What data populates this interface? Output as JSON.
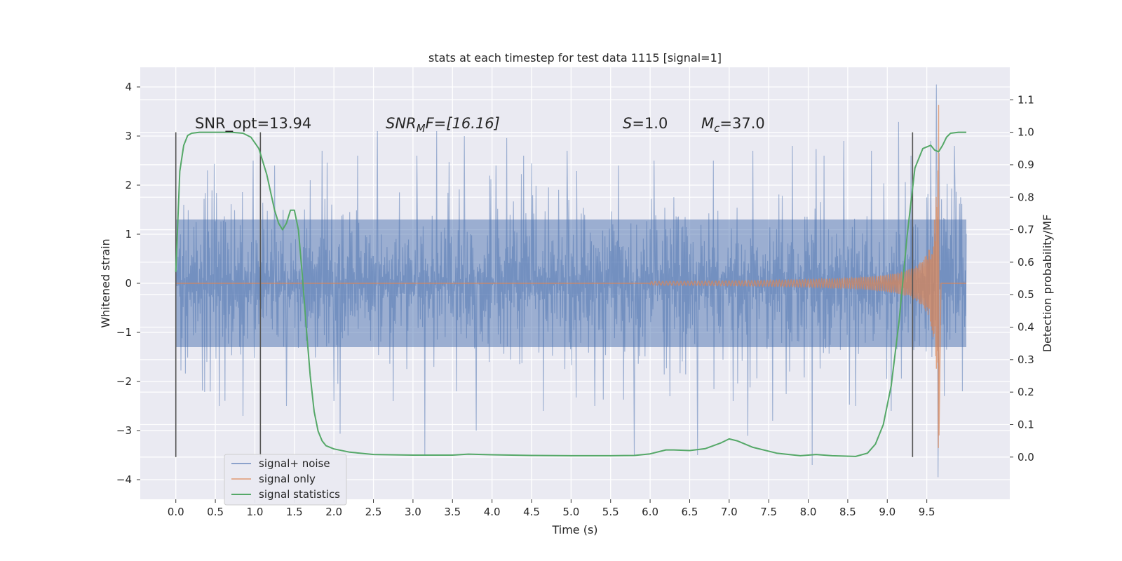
{
  "chart_data": {
    "type": "line",
    "title": "stats at each timestep for test data 1115 [signal=1]",
    "xlabel": "Time (s)",
    "ylabel": "Whitened strain",
    "y2label": "Detection probability/MF",
    "xlim": [
      -0.45,
      10.55
    ],
    "ylim": [
      -4.4,
      4.4
    ],
    "y2lim": [
      -0.13,
      1.2
    ],
    "x_ticks": [
      "0.0",
      "0.5",
      "1.0",
      "1.5",
      "2.0",
      "2.5",
      "3.0",
      "3.5",
      "4.0",
      "4.5",
      "5.0",
      "5.5",
      "6.0",
      "6.5",
      "7.0",
      "7.5",
      "8.0",
      "8.5",
      "9.0",
      "9.5"
    ],
    "y_ticks": [
      "4",
      "3",
      "2",
      "1",
      "0",
      "−1",
      "−2",
      "−3",
      "−4"
    ],
    "y2_ticks": [
      "1.1",
      "1.0",
      "0.9",
      "0.8",
      "0.7",
      "0.6",
      "0.5",
      "0.4",
      "0.3",
      "0.2",
      "0.1",
      "0.0"
    ],
    "grid": true,
    "legend_placement": "lower-left",
    "annotations": {
      "snr_opt": "SNR_opt=13.94",
      "snr_mf_italic": "SNR",
      "snr_mf_sub": "M",
      "snr_mf_rest": "F=[16.16]",
      "s_italic": "S",
      "s_rest": "=1.0",
      "mc_italic": "M",
      "mc_sub": "c",
      "mc_rest": "=37.0"
    },
    "vlines_x": [
      0.0,
      1.07,
      9.32
    ],
    "vlines_y2_range": [
      0.0,
      1.0
    ],
    "series": [
      {
        "name": "signal+ noise",
        "color": "#4c72b0",
        "x_range": [
          0.0,
          10.0
        ],
        "typical_envelope": [
          -1.3,
          1.3
        ],
        "peaks": [
          {
            "x": 0.1,
            "y": 1.6
          },
          {
            "x": 0.4,
            "y": 2.3
          },
          {
            "x": 0.55,
            "y": -2.5
          },
          {
            "x": 0.85,
            "y": -2.7
          },
          {
            "x": 0.98,
            "y": 2.5
          },
          {
            "x": 1.25,
            "y": 2.4
          },
          {
            "x": 1.4,
            "y": -2.5
          },
          {
            "x": 1.7,
            "y": 2.1
          },
          {
            "x": 1.85,
            "y": 2.7
          },
          {
            "x": 2.0,
            "y": -2.4
          },
          {
            "x": 2.3,
            "y": 2.6
          },
          {
            "x": 2.55,
            "y": 3.1
          },
          {
            "x": 2.75,
            "y": -2.4
          },
          {
            "x": 3.05,
            "y": 2.6
          },
          {
            "x": 3.15,
            "y": -3.5
          },
          {
            "x": 3.3,
            "y": 3.1
          },
          {
            "x": 3.55,
            "y": -2.2
          },
          {
            "x": 3.65,
            "y": 3.0
          },
          {
            "x": 3.8,
            "y": -3.0
          },
          {
            "x": 4.05,
            "y": 2.4
          },
          {
            "x": 4.4,
            "y": 2.6
          },
          {
            "x": 4.65,
            "y": -2.6
          },
          {
            "x": 4.95,
            "y": 2.7
          },
          {
            "x": 5.3,
            "y": -2.5
          },
          {
            "x": 5.6,
            "y": 2.4
          },
          {
            "x": 5.8,
            "y": -3.5
          },
          {
            "x": 6.05,
            "y": 2.5
          },
          {
            "x": 6.25,
            "y": -2.3
          },
          {
            "x": 6.6,
            "y": -3.5
          },
          {
            "x": 6.8,
            "y": 2.5
          },
          {
            "x": 7.05,
            "y": -2.4
          },
          {
            "x": 7.3,
            "y": 2.7
          },
          {
            "x": 7.55,
            "y": -2.8
          },
          {
            "x": 7.8,
            "y": 2.8
          },
          {
            "x": 8.05,
            "y": -3.7
          },
          {
            "x": 8.2,
            "y": 2.6
          },
          {
            "x": 8.45,
            "y": 2.9
          },
          {
            "x": 8.6,
            "y": -2.5
          },
          {
            "x": 8.8,
            "y": 2.7
          },
          {
            "x": 9.05,
            "y": -2.6
          },
          {
            "x": 9.3,
            "y": 2.6
          },
          {
            "x": 9.55,
            "y": 2.9
          },
          {
            "x": 9.62,
            "y": 4.05
          },
          {
            "x": 9.64,
            "y": -3.95
          },
          {
            "x": 9.85,
            "y": 2.8
          },
          {
            "x": 9.95,
            "y": -2.2
          }
        ]
      },
      {
        "name": "signal only",
        "color": "#dd8452",
        "chirp": {
          "x_start": 6.0,
          "x_peak": 9.65,
          "x_end": 9.68,
          "peak_amplitude": 3.8,
          "peak_min": -3.1
        }
      },
      {
        "name": "signal statistics",
        "color": "#55a868",
        "axis": "y2",
        "x": [
          0.0,
          0.05,
          0.1,
          0.15,
          0.2,
          0.3,
          0.5,
          0.7,
          0.85,
          0.95,
          1.05,
          1.15,
          1.25,
          1.3,
          1.35,
          1.4,
          1.45,
          1.5,
          1.55,
          1.6,
          1.65,
          1.7,
          1.75,
          1.8,
          1.85,
          1.9,
          2.0,
          2.2,
          2.5,
          3.0,
          3.5,
          3.7,
          4.0,
          4.5,
          5.0,
          5.5,
          5.8,
          6.0,
          6.2,
          6.3,
          6.5,
          6.7,
          6.9,
          7.0,
          7.1,
          7.3,
          7.6,
          7.9,
          8.1,
          8.3,
          8.6,
          8.75,
          8.85,
          8.95,
          9.05,
          9.15,
          9.25,
          9.35,
          9.45,
          9.55,
          9.6,
          9.65,
          9.7,
          9.75,
          9.8,
          9.9,
          10.0
        ],
        "y": [
          0.57,
          0.88,
          0.96,
          0.99,
          0.997,
          1.0,
          1.0,
          1.0,
          0.997,
          0.985,
          0.95,
          0.87,
          0.76,
          0.72,
          0.7,
          0.72,
          0.76,
          0.76,
          0.7,
          0.56,
          0.4,
          0.25,
          0.14,
          0.08,
          0.05,
          0.035,
          0.025,
          0.015,
          0.008,
          0.006,
          0.006,
          0.009,
          0.007,
          0.005,
          0.004,
          0.004,
          0.005,
          0.01,
          0.022,
          0.022,
          0.02,
          0.026,
          0.044,
          0.056,
          0.05,
          0.03,
          0.012,
          0.004,
          0.008,
          0.004,
          0.002,
          0.012,
          0.04,
          0.1,
          0.22,
          0.42,
          0.68,
          0.89,
          0.95,
          0.96,
          0.945,
          0.94,
          0.96,
          0.985,
          0.997,
          1.0,
          1.0
        ]
      }
    ]
  }
}
